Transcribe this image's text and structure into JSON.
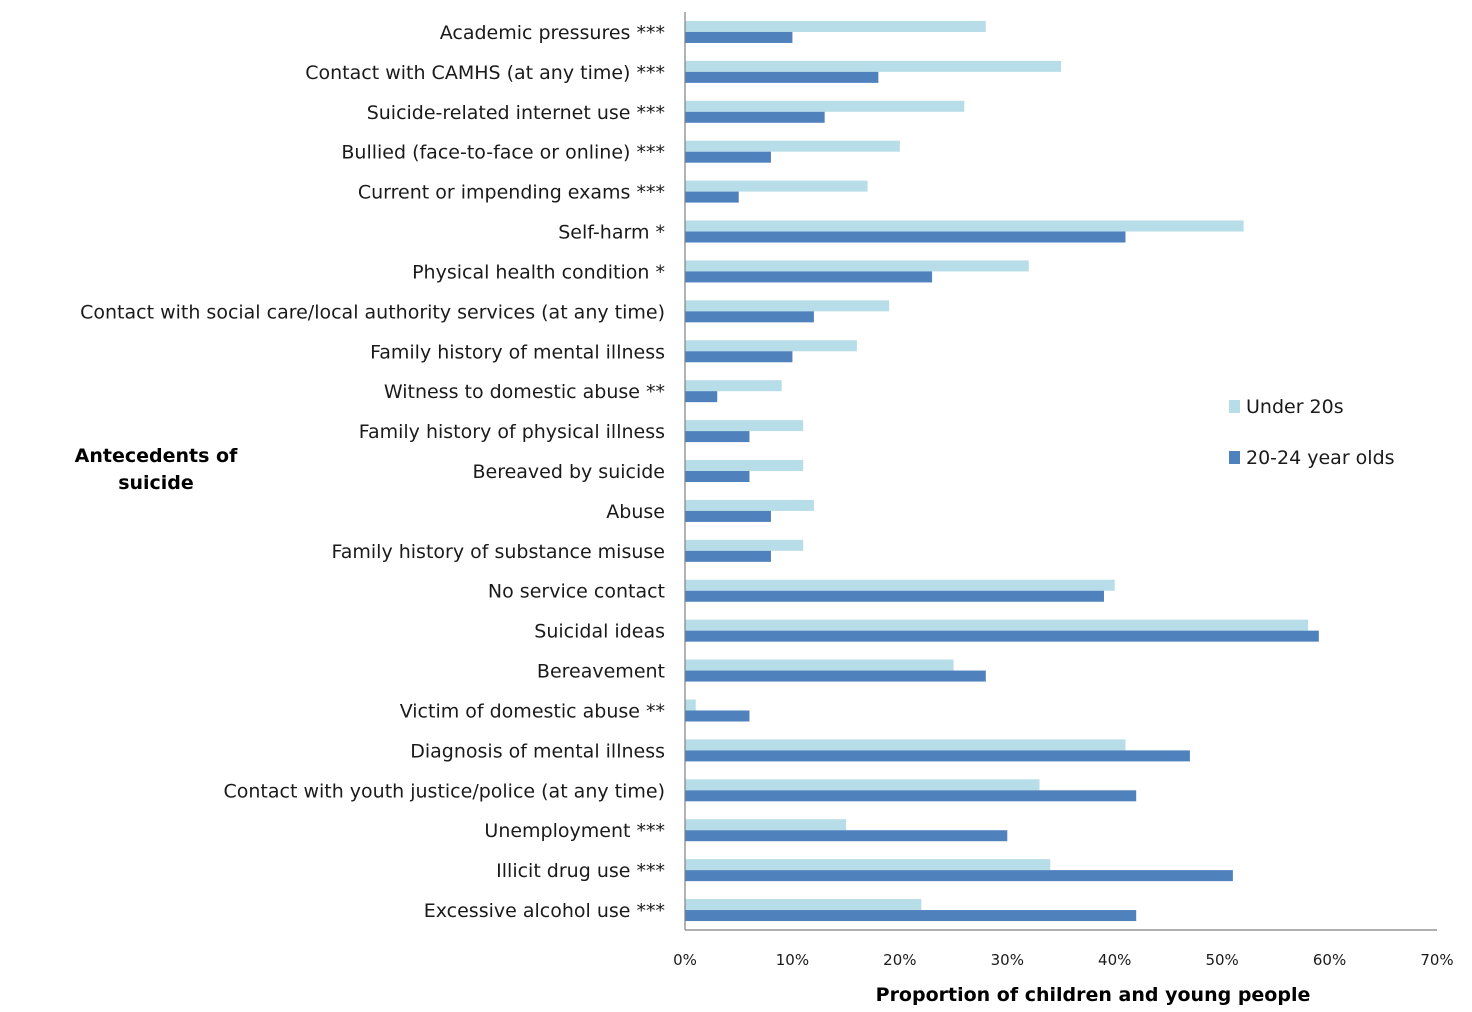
{
  "chart_data": {
    "type": "bar",
    "orientation": "horizontal",
    "title": "",
    "ylabel_lines": [
      "Antecedents of",
      "suicide"
    ],
    "xlabel": "Proportion  of children and young people",
    "xlim": [
      0,
      70
    ],
    "x_tick_labels": [
      "0%",
      "10%",
      "20%",
      "30%",
      "40%",
      "50%",
      "60%",
      "70%"
    ],
    "x_tick_values": [
      0,
      10,
      20,
      30,
      40,
      50,
      60,
      70
    ],
    "grid": false,
    "legend_position": "right",
    "categories": [
      "Academic pressures ***",
      "Contact with CAMHS (at any time) ***",
      "Suicide-related internet use ***",
      "Bullied (face-to-face or online)  ***",
      "Current or impending exams ***",
      "Self-harm *",
      "Physical health condition *",
      "Contact with social care/local authority services (at any time)",
      "Family history of mental illness",
      "Witness to domestic abuse **",
      "Family history of physical illness",
      "Bereaved by suicide",
      "Abuse",
      "Family history of substance misuse",
      "No service contact",
      "Suicidal ideas",
      "Bereavement",
      "Victim of domestic abuse **",
      "Diagnosis of mental illness",
      "Contact with youth justice/police (at any time)",
      "Unemployment ***",
      "Illicit drug use ***",
      "Excessive alcohol use ***"
    ],
    "series": [
      {
        "name": "Under 20s",
        "color": "#b7dde8",
        "values": [
          28,
          35,
          26,
          20,
          17,
          52,
          32,
          19,
          16,
          9,
          11,
          11,
          12,
          11,
          40,
          58,
          25,
          1,
          41,
          33,
          15,
          34,
          22
        ]
      },
      {
        "name": "20-24 year olds",
        "color": "#4f81bd",
        "values": [
          10,
          18,
          13,
          8,
          5,
          41,
          23,
          12,
          10,
          3,
          6,
          6,
          8,
          8,
          39,
          59,
          28,
          6,
          47,
          42,
          30,
          51,
          42
        ]
      }
    ]
  }
}
